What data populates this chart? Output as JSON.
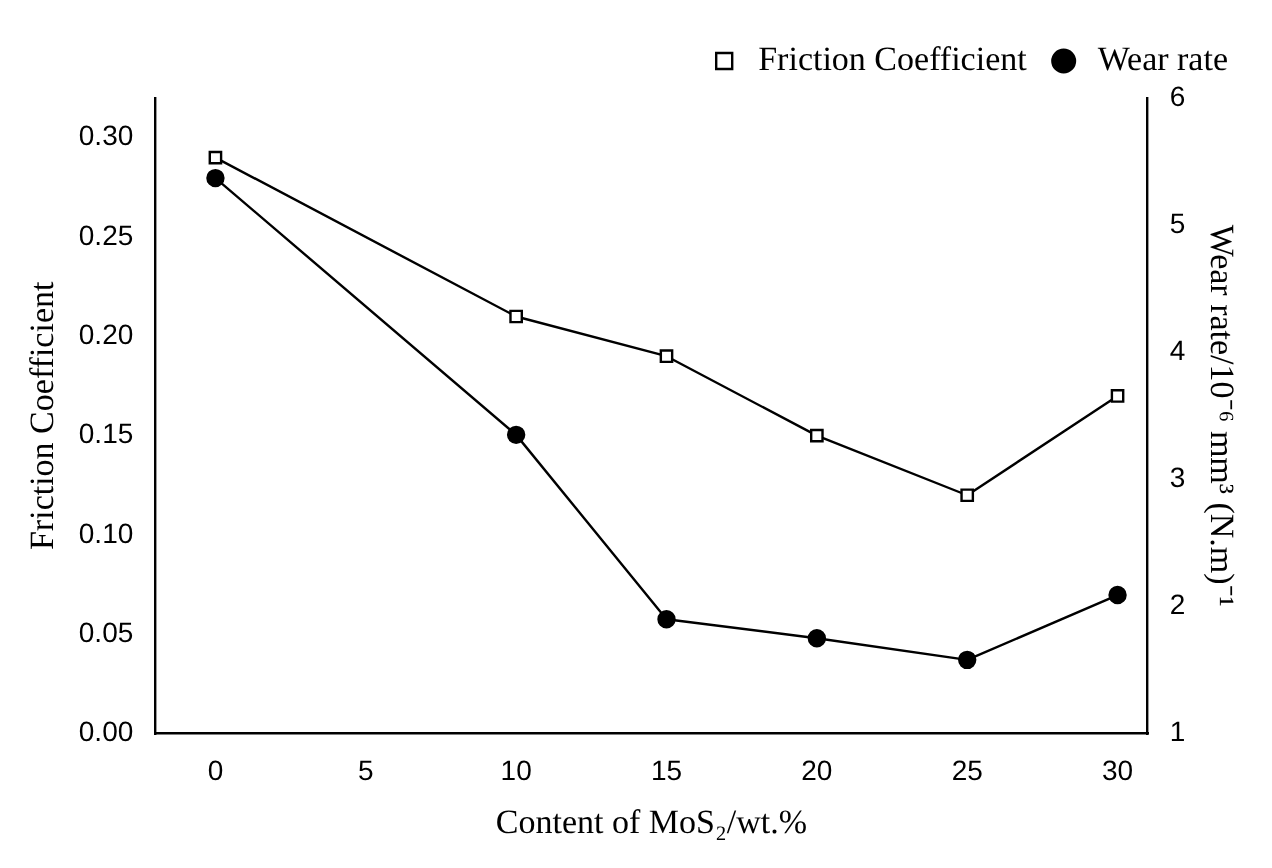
{
  "chart_data": {
    "type": "line",
    "xlabel": "Content of MoS₂/wt.%",
    "ylabel": "Friction Coefficient",
    "y2label": "Wear rate/10⁻⁶ mm³ (N.m)⁻¹",
    "x": [
      0,
      10,
      15,
      20,
      25,
      30
    ],
    "series": [
      {
        "name": "Friction Coefficient",
        "color": "#000000",
        "marker": "square",
        "values": [
          0.29,
          0.21,
          0.19,
          0.15,
          0.12,
          0.17
        ]
      },
      {
        "name": "Wear rate",
        "color": "#000000",
        "marker": "circle",
        "axis": "y2",
        "values": [
          5.37,
          3.35,
          1.9,
          1.75,
          1.58,
          2.09
        ]
      }
    ],
    "xlim": [
      -2,
      31
    ],
    "xticks": [
      0,
      5,
      10,
      15,
      20,
      25,
      30
    ],
    "ylim": [
      0,
      0.32
    ],
    "yticks": [
      {
        "value": 0,
        "label": "0.00"
      },
      {
        "value": 0.05,
        "label": "0.05"
      },
      {
        "value": 0.1,
        "label": "0.10"
      },
      {
        "value": 0.15,
        "label": "0.15"
      },
      {
        "value": 0.2,
        "label": "0.20"
      },
      {
        "value": 0.25,
        "label": "0.25"
      },
      {
        "value": 0.3,
        "label": "0.30"
      }
    ],
    "y2lim": [
      1,
      6
    ],
    "y2ticks": [
      1,
      2,
      3,
      4,
      5,
      6
    ],
    "grid": false,
    "legend": "top right",
    "line_style": "solid"
  }
}
